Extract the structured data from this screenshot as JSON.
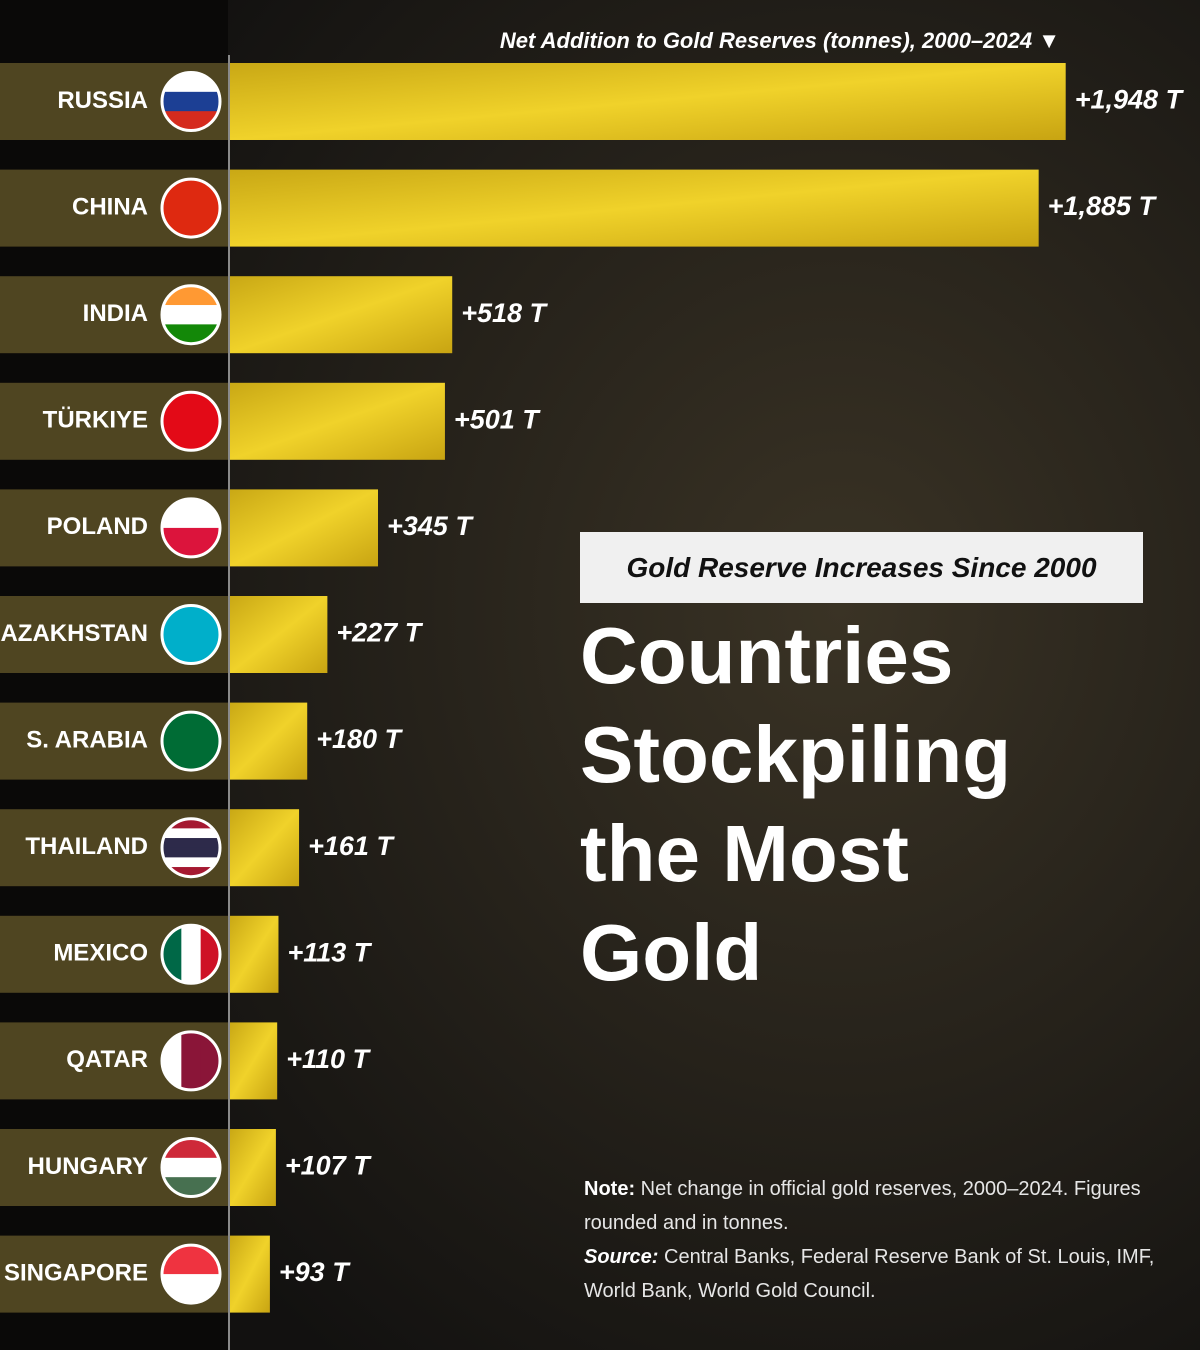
{
  "chart_data": {
    "type": "bar",
    "orientation": "horizontal",
    "axis_label": "Net Addition to Gold Reserves (tonnes), 2000–2024 ▼",
    "subtitle": "Gold Reserve Increases Since 2000",
    "title": "Countries Stockpiling the Most Gold",
    "categories": [
      "RUSSIA",
      "CHINA",
      "INDIA",
      "TÜRKIYE",
      "POLAND",
      "KAZAKHSTAN",
      "S. ARABIA",
      "THAILAND",
      "MEXICO",
      "QATAR",
      "HUNGARY",
      "SINGAPORE"
    ],
    "values": [
      1948,
      1885,
      518,
      501,
      345,
      227,
      180,
      161,
      113,
      110,
      107,
      93
    ],
    "value_labels": [
      "+1,948 T",
      "+1,885 T",
      "+518 T",
      "+501 T",
      "+345 T",
      "+227 T",
      "+180 T",
      "+161 T",
      "+113 T",
      "+110 T",
      "+107 T",
      "+93 T"
    ],
    "color": "#e6c21a",
    "xlim": [
      0,
      2000
    ],
    "note": {
      "label": "Note:",
      "text": "Net change in official gold reserves, 2000–2024. Figures rounded and in tonnes."
    },
    "source": {
      "label": "Source:",
      "text": "Central Banks, Federal Reserve Bank of St. Louis, IMF, World Bank, World Gold Council."
    }
  }
}
